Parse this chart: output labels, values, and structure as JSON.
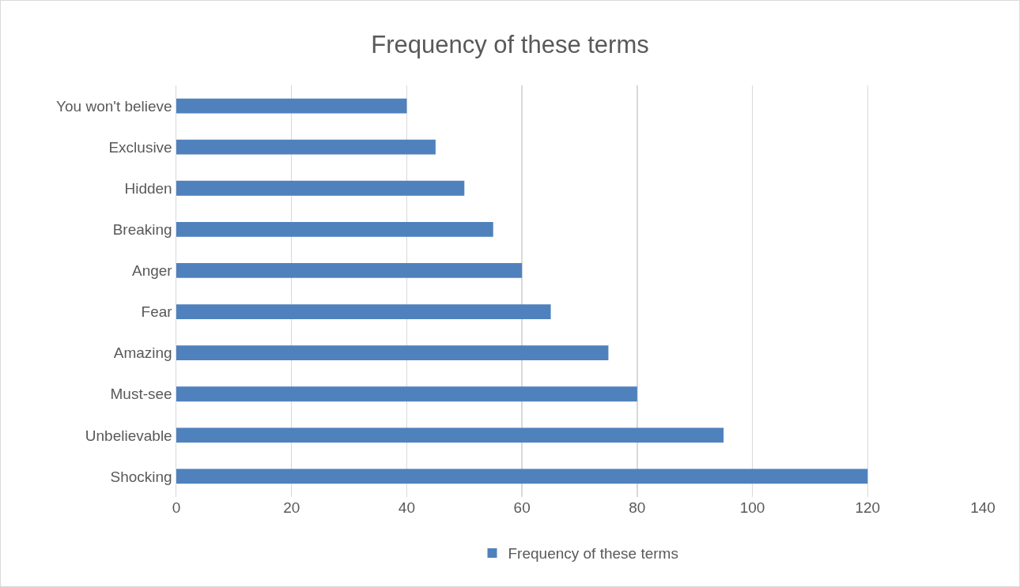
{
  "chart_data": {
    "type": "bar",
    "orientation": "horizontal",
    "title": "Frequency of these terms",
    "categories": [
      "You won't believe",
      "Exclusive",
      "Hidden",
      "Breaking",
      "Anger",
      "Fear",
      "Amazing",
      "Must-see",
      "Unbelievable",
      "Shocking"
    ],
    "series": [
      {
        "name": "Frequency of these terms",
        "color": "#4f81bd",
        "values": [
          40,
          45,
          50,
          55,
          60,
          65,
          75,
          80,
          95,
          120
        ]
      }
    ],
    "xlim": [
      0,
      140
    ],
    "xticks": [
      0,
      20,
      40,
      60,
      80,
      100,
      120,
      140
    ],
    "grid": "x",
    "legend": "bottom"
  }
}
